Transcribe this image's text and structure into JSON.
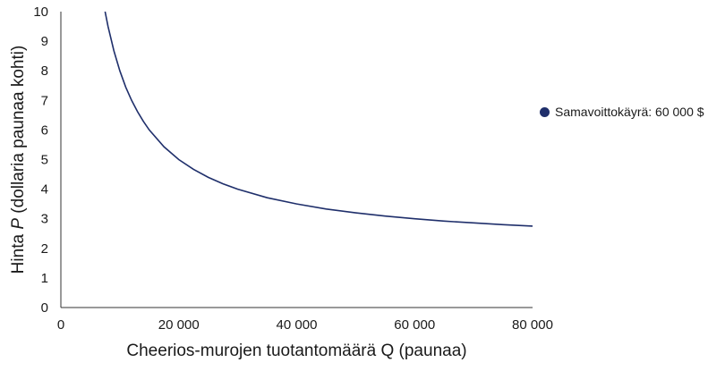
{
  "chart_data": {
    "type": "line",
    "xlabel": "Cheerios-murojen tuotantomäärä Q (paunaa)",
    "ylabel_parts": [
      "Hinta ",
      "P",
      " (dollaria paunaa kohti)"
    ],
    "x_ticks": [
      {
        "value": 0,
        "label": "0"
      },
      {
        "value": 20000,
        "label": "20 000"
      },
      {
        "value": 40000,
        "label": "40 000"
      },
      {
        "value": 60000,
        "label": "60 000"
      },
      {
        "value": 80000,
        "label": "80 000"
      }
    ],
    "y_ticks": [
      0,
      1,
      2,
      3,
      4,
      5,
      6,
      7,
      8,
      9,
      10
    ],
    "xlim": [
      0,
      80000
    ],
    "ylim": [
      0,
      10
    ],
    "grid": false,
    "legend_position": "right",
    "series": [
      {
        "name": "Samavoittokäyrä: 60 000 $",
        "color": "#1f2f6b",
        "points": [
          [
            7500,
            10.0
          ],
          [
            8000,
            9.5
          ],
          [
            9000,
            8.67
          ],
          [
            10000,
            8.0
          ],
          [
            11000,
            7.45
          ],
          [
            12000,
            7.0
          ],
          [
            13000,
            6.62
          ],
          [
            14000,
            6.29
          ],
          [
            15000,
            6.0
          ],
          [
            17500,
            5.43
          ],
          [
            20000,
            5.0
          ],
          [
            22500,
            4.67
          ],
          [
            25000,
            4.4
          ],
          [
            27500,
            4.18
          ],
          [
            30000,
            4.0
          ],
          [
            35000,
            3.71
          ],
          [
            40000,
            3.5
          ],
          [
            45000,
            3.33
          ],
          [
            50000,
            3.2
          ],
          [
            55000,
            3.09
          ],
          [
            60000,
            3.0
          ],
          [
            65000,
            2.92
          ],
          [
            70000,
            2.86
          ],
          [
            75000,
            2.8
          ],
          [
            80000,
            2.75
          ]
        ]
      }
    ]
  }
}
